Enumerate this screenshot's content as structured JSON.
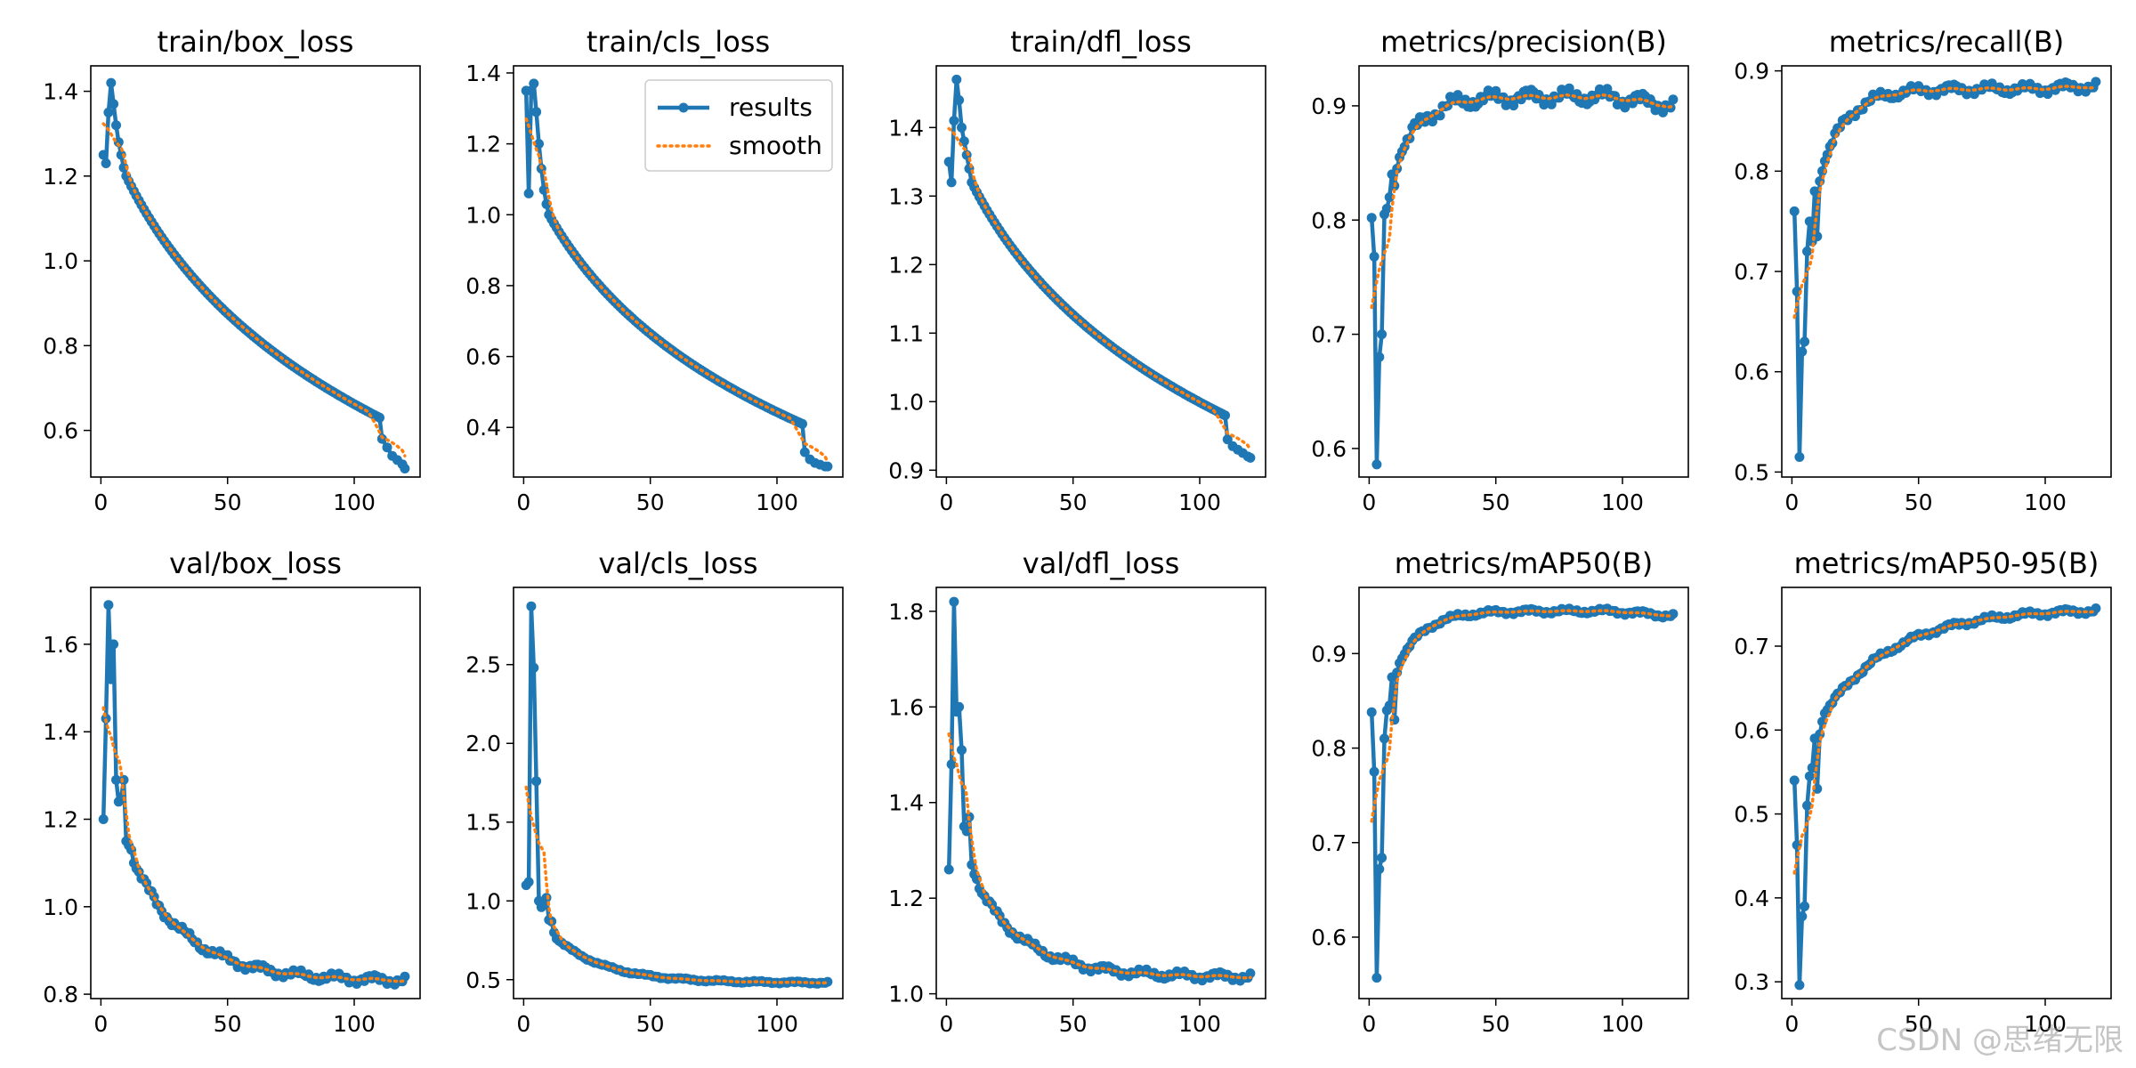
{
  "watermark": "CSDN @思绪无限",
  "colors": {
    "results": "#1f77b4",
    "smooth": "#ff7f0e",
    "axis": "#000000"
  },
  "legend": {
    "results_label": "results",
    "smooth_label": "smooth",
    "panel": "train/cls_loss",
    "placement": "upper-right"
  },
  "chart_data": [
    {
      "type": "line",
      "title": "train/box_loss",
      "xlim": [
        -4,
        126
      ],
      "ylim": [
        0.49,
        1.46
      ],
      "xticks": [
        0,
        50,
        100
      ],
      "yticks": [
        0.6,
        0.8,
        1.0,
        1.2,
        1.4
      ],
      "raw": [
        [
          1,
          1.25
        ],
        [
          2,
          1.23
        ],
        [
          3,
          1.35
        ],
        [
          4,
          1.42
        ],
        [
          5,
          1.37
        ],
        [
          6,
          1.32
        ],
        [
          7,
          1.28
        ],
        [
          8,
          1.25
        ],
        [
          9,
          1.22
        ],
        [
          10,
          1.2
        ]
      ],
      "trend": {
        "start": 10,
        "end": 110,
        "from": 1.2,
        "to": 0.63,
        "shape": "log"
      },
      "tail": [
        [
          111,
          0.58
        ],
        [
          113,
          0.56
        ],
        [
          115,
          0.54
        ],
        [
          117,
          0.53
        ],
        [
          119,
          0.52
        ],
        [
          120,
          0.51
        ]
      ]
    },
    {
      "type": "line",
      "title": "train/cls_loss",
      "xlim": [
        -4,
        126
      ],
      "ylim": [
        0.26,
        1.42
      ],
      "xticks": [
        0,
        50,
        100
      ],
      "yticks": [
        0.4,
        0.6,
        0.8,
        1.0,
        1.2,
        1.4
      ],
      "raw": [
        [
          1,
          1.35
        ],
        [
          2,
          1.06
        ],
        [
          3,
          1.35
        ],
        [
          4,
          1.37
        ],
        [
          5,
          1.29
        ],
        [
          6,
          1.2
        ],
        [
          7,
          1.13
        ],
        [
          8,
          1.07
        ],
        [
          9,
          1.03
        ],
        [
          10,
          1.0
        ]
      ],
      "trend": {
        "start": 10,
        "end": 110,
        "from": 1.0,
        "to": 0.41,
        "shape": "log"
      },
      "tail": [
        [
          111,
          0.33
        ],
        [
          113,
          0.31
        ],
        [
          115,
          0.3
        ],
        [
          117,
          0.295
        ],
        [
          119,
          0.29
        ],
        [
          120,
          0.29
        ]
      ]
    },
    {
      "type": "line",
      "title": "train/dfl_loss",
      "xlim": [
        -4,
        126
      ],
      "ylim": [
        0.89,
        1.49
      ],
      "xticks": [
        0,
        50,
        100
      ],
      "yticks": [
        0.9,
        1.0,
        1.1,
        1.2,
        1.3,
        1.4
      ],
      "raw": [
        [
          1,
          1.35
        ],
        [
          2,
          1.32
        ],
        [
          3,
          1.41
        ],
        [
          4,
          1.47
        ],
        [
          5,
          1.44
        ],
        [
          6,
          1.4
        ],
        [
          7,
          1.38
        ],
        [
          8,
          1.36
        ],
        [
          9,
          1.34
        ],
        [
          10,
          1.32
        ]
      ],
      "trend": {
        "start": 10,
        "end": 110,
        "from": 1.32,
        "to": 0.98,
        "shape": "log"
      },
      "tail": [
        [
          111,
          0.945
        ],
        [
          113,
          0.935
        ],
        [
          115,
          0.93
        ],
        [
          117,
          0.925
        ],
        [
          119,
          0.92
        ],
        [
          120,
          0.918
        ]
      ]
    },
    {
      "type": "line",
      "title": "metrics/precision(B)",
      "xlim": [
        -4,
        126
      ],
      "ylim": [
        0.575,
        0.935
      ],
      "xticks": [
        0,
        50,
        100
      ],
      "yticks": [
        0.6,
        0.7,
        0.8,
        0.9
      ],
      "raw": [
        [
          1,
          0.802
        ],
        [
          2,
          0.768
        ],
        [
          3,
          0.586
        ],
        [
          4,
          0.68
        ],
        [
          5,
          0.7
        ],
        [
          6,
          0.805
        ],
        [
          7,
          0.81
        ],
        [
          8,
          0.82
        ],
        [
          9,
          0.84
        ],
        [
          10,
          0.83
        ],
        [
          11,
          0.845
        ],
        [
          12,
          0.855
        ],
        [
          13,
          0.86
        ]
      ],
      "trend": {
        "start": 13,
        "end": 120,
        "from": 0.86,
        "to": 0.9,
        "shape": "plateau",
        "peak": 0.908,
        "noise": 0.008
      }
    },
    {
      "type": "line",
      "title": "metrics/recall(B)",
      "xlim": [
        -4,
        126
      ],
      "ylim": [
        0.495,
        0.905
      ],
      "xticks": [
        0,
        50,
        100
      ],
      "yticks": [
        0.5,
        0.6,
        0.7,
        0.8,
        0.9
      ],
      "raw": [
        [
          1,
          0.76
        ],
        [
          2,
          0.68
        ],
        [
          3,
          0.515
        ],
        [
          4,
          0.62
        ],
        [
          5,
          0.63
        ],
        [
          6,
          0.72
        ],
        [
          7,
          0.75
        ],
        [
          8,
          0.73
        ],
        [
          9,
          0.78
        ],
        [
          10,
          0.735
        ],
        [
          11,
          0.79
        ],
        [
          12,
          0.8
        ],
        [
          13,
          0.81
        ]
      ],
      "trend": {
        "start": 13,
        "end": 120,
        "from": 0.81,
        "to": 0.885,
        "shape": "plateau",
        "peak": 0.882,
        "noise": 0.006
      }
    },
    {
      "type": "line",
      "title": "val/box_loss",
      "xlim": [
        -4,
        126
      ],
      "ylim": [
        0.79,
        1.73
      ],
      "xticks": [
        0,
        50,
        100
      ],
      "yticks": [
        0.8,
        1.0,
        1.2,
        1.4,
        1.6
      ],
      "raw": [
        [
          1,
          1.2
        ],
        [
          2,
          1.43
        ],
        [
          3,
          1.69
        ],
        [
          4,
          1.52
        ],
        [
          5,
          1.6
        ],
        [
          6,
          1.29
        ],
        [
          7,
          1.24
        ],
        [
          8,
          1.25
        ],
        [
          9,
          1.29
        ],
        [
          10,
          1.15
        ],
        [
          11,
          1.14
        ],
        [
          12,
          1.13
        ],
        [
          13,
          1.1
        ]
      ],
      "trend": {
        "start": 13,
        "end": 120,
        "from": 1.1,
        "to": 0.83,
        "shape": "exp",
        "k": 22,
        "noise": 0.012
      }
    },
    {
      "type": "line",
      "title": "val/cls_loss",
      "xlim": [
        -4,
        126
      ],
      "ylim": [
        0.38,
        2.99
      ],
      "xticks": [
        0,
        50,
        100
      ],
      "yticks": [
        0.5,
        1.0,
        1.5,
        2.0,
        2.5
      ],
      "raw": [
        [
          1,
          1.1
        ],
        [
          2,
          1.12
        ],
        [
          3,
          2.87
        ],
        [
          4,
          2.48
        ],
        [
          5,
          1.76
        ],
        [
          6,
          1.0
        ],
        [
          7,
          0.96
        ],
        [
          8,
          0.98
        ],
        [
          9,
          1.02
        ],
        [
          10,
          0.88
        ],
        [
          11,
          0.87
        ],
        [
          12,
          0.8
        ],
        [
          13,
          0.76
        ]
      ],
      "trend": {
        "start": 13,
        "end": 120,
        "from": 0.76,
        "to": 0.48,
        "shape": "exp",
        "k": 20,
        "noise": 0.008
      }
    },
    {
      "type": "line",
      "title": "val/dfl_loss",
      "xlim": [
        -4,
        126
      ],
      "ylim": [
        0.99,
        1.85
      ],
      "xticks": [
        0,
        50,
        100
      ],
      "yticks": [
        1.0,
        1.2,
        1.4,
        1.6,
        1.8
      ],
      "raw": [
        [
          1,
          1.26
        ],
        [
          2,
          1.48
        ],
        [
          3,
          1.82
        ],
        [
          4,
          1.59
        ],
        [
          5,
          1.6
        ],
        [
          6,
          1.51
        ],
        [
          7,
          1.35
        ],
        [
          8,
          1.34
        ],
        [
          9,
          1.37
        ],
        [
          10,
          1.27
        ],
        [
          11,
          1.25
        ],
        [
          12,
          1.24
        ],
        [
          13,
          1.22
        ]
      ],
      "trend": {
        "start": 13,
        "end": 120,
        "from": 1.22,
        "to": 1.035,
        "shape": "exp",
        "k": 20,
        "noise": 0.01
      }
    },
    {
      "type": "line",
      "title": "metrics/mAP50(B)",
      "xlim": [
        -4,
        126
      ],
      "ylim": [
        0.535,
        0.97
      ],
      "xticks": [
        0,
        50,
        100
      ],
      "yticks": [
        0.6,
        0.7,
        0.8,
        0.9
      ],
      "raw": [
        [
          1,
          0.838
        ],
        [
          2,
          0.775
        ],
        [
          3,
          0.557
        ],
        [
          4,
          0.672
        ],
        [
          5,
          0.684
        ],
        [
          6,
          0.81
        ],
        [
          7,
          0.84
        ],
        [
          8,
          0.845
        ],
        [
          9,
          0.875
        ],
        [
          10,
          0.83
        ],
        [
          11,
          0.88
        ],
        [
          12,
          0.89
        ],
        [
          13,
          0.895
        ]
      ],
      "trend": {
        "start": 13,
        "end": 120,
        "from": 0.895,
        "to": 0.94,
        "shape": "plateau",
        "peak": 0.945,
        "noise": 0.003
      }
    },
    {
      "type": "line",
      "title": "metrics/mAP50-95(B)",
      "xlim": [
        -4,
        126
      ],
      "ylim": [
        0.28,
        0.77
      ],
      "xticks": [
        0,
        50,
        100
      ],
      "yticks": [
        0.3,
        0.4,
        0.5,
        0.6,
        0.7
      ],
      "raw": [
        [
          1,
          0.54
        ],
        [
          2,
          0.463
        ],
        [
          3,
          0.296
        ],
        [
          4,
          0.378
        ],
        [
          5,
          0.39
        ],
        [
          6,
          0.51
        ],
        [
          7,
          0.545
        ],
        [
          8,
          0.555
        ],
        [
          9,
          0.59
        ],
        [
          10,
          0.53
        ],
        [
          11,
          0.595
        ],
        [
          12,
          0.61
        ],
        [
          13,
          0.62
        ]
      ],
      "trend": {
        "start": 13,
        "end": 120,
        "from": 0.62,
        "to": 0.745,
        "shape": "saturate",
        "k": 28,
        "noise": 0.004
      }
    }
  ]
}
